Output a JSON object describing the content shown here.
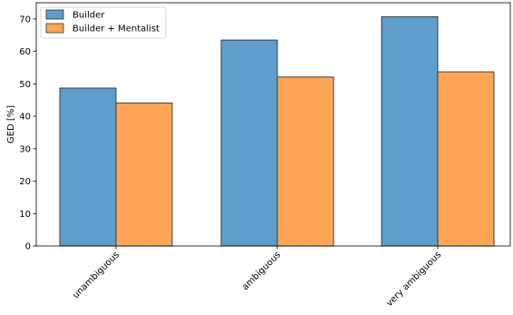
{
  "chart_data": {
    "type": "bar",
    "categories": [
      "unambiguous",
      "ambiguous",
      "very ambiguous"
    ],
    "series": [
      {
        "name": "Builder",
        "values": [
          48.7,
          63.5,
          70.7
        ],
        "color": "#5f9dcc"
      },
      {
        "name": "Builder + Mentalist",
        "values": [
          44.1,
          52.1,
          53.7
        ],
        "color": "#ffa556"
      }
    ],
    "xlabel": "",
    "ylabel": "GED [%]",
    "ylim": [
      0,
      75
    ],
    "yticks": [
      0,
      10,
      20,
      30,
      40,
      50,
      60,
      70
    ],
    "grid": false,
    "legend_position": "top-left",
    "edge_color": "#333333"
  }
}
